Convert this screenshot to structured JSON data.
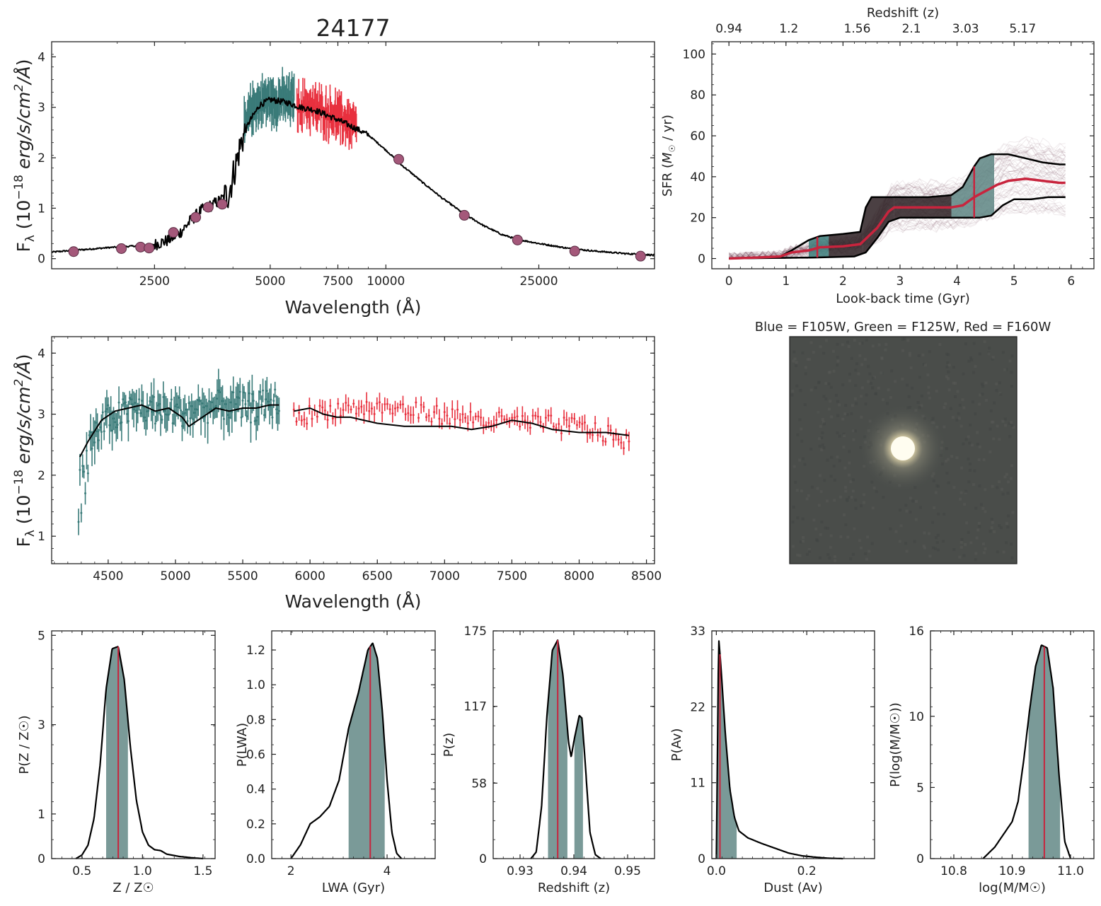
{
  "colors": {
    "grism_blue": "#3a7b79",
    "grism_red": "#e8303e",
    "model": "#000000",
    "photometry": "#a4587a",
    "sfr_median": "#c8243d",
    "posterior_fill": "#7a9a98",
    "posterior_median": "#c8243d"
  },
  "chart_data": [
    {
      "id": "sed_full",
      "type": "line",
      "title": "24177",
      "xlabel": "Wavelength (Å)",
      "ylabel": "F_λ (10^-18 erg/s/cm²/Å)",
      "xscale": "log",
      "xlim": [
        1350,
        50000
      ],
      "ylim": [
        -0.2,
        4.3
      ],
      "xticks": [
        2500,
        5000,
        7500,
        10000,
        25000
      ],
      "xtick_labels": [
        "2500",
        "5000",
        "7500",
        "10000",
        "25000"
      ],
      "yticks": [
        0,
        1,
        2,
        3,
        4
      ],
      "ytick_labels": [
        "0",
        "1",
        "2",
        "3",
        "4"
      ],
      "photometry": {
        "x": [
          1540,
          2050,
          2300,
          2420,
          2800,
          3200,
          3450,
          3750,
          10800,
          16000,
          22000,
          31000,
          46000
        ],
        "y": [
          0.14,
          0.2,
          0.23,
          0.21,
          0.52,
          0.82,
          1.02,
          1.08,
          1.97,
          0.86,
          0.37,
          0.15,
          0.05
        ]
      },
      "model": {
        "x": [
          1300,
          1500,
          1700,
          1900,
          2100,
          2300,
          2500,
          2700,
          2900,
          3100,
          3300,
          3500,
          3700,
          3900,
          4050,
          4200,
          4400,
          4700,
          5000,
          5500,
          6000,
          6500,
          7000,
          7500,
          8000,
          8500,
          9000,
          10000,
          11000,
          12500,
          14000,
          16000,
          18000,
          20000,
          22000,
          25000,
          30000,
          35000,
          42000,
          50000
        ],
        "y": [
          0.12,
          0.16,
          0.19,
          0.22,
          0.24,
          0.26,
          0.28,
          0.36,
          0.5,
          0.75,
          0.95,
          1.05,
          1.15,
          1.3,
          1.8,
          2.3,
          2.7,
          3.05,
          3.15,
          3.1,
          3.0,
          2.95,
          2.85,
          2.75,
          2.65,
          2.55,
          2.45,
          2.15,
          1.85,
          1.5,
          1.2,
          0.88,
          0.65,
          0.48,
          0.38,
          0.3,
          0.2,
          0.15,
          0.1,
          0.07
        ]
      },
      "grism_blue": {
        "x_range": [
          4280,
          5770
        ],
        "y_mean": [
          2.6,
          3.0,
          3.1,
          3.15,
          3.1,
          3.2,
          3.1,
          3.2
        ]
      },
      "grism_red": {
        "x_range": [
          5870,
          8380
        ],
        "y_mean": [
          3.0,
          3.05,
          2.95,
          2.9,
          2.85,
          2.75,
          2.7,
          2.6
        ]
      }
    },
    {
      "id": "sfh",
      "type": "line",
      "xlabel": "Look-back time (Gyr)",
      "ylabel": "SFR (M☉ / yr)",
      "top_xlabel": "Redshift (z)",
      "top_xtick_labels": [
        "0.94",
        "1.2",
        "1.56",
        "2.1",
        "3.03",
        "5.17"
      ],
      "xlim": [
        -0.3,
        6.4
      ],
      "ylim": [
        -5,
        106
      ],
      "xticks": [
        0,
        1,
        2,
        3,
        4,
        5,
        6
      ],
      "yticks": [
        0,
        20,
        40,
        60,
        80,
        100
      ],
      "median": {
        "x": [
          0,
          0.5,
          0.9,
          1.1,
          1.4,
          1.6,
          2.0,
          2.3,
          2.6,
          2.8,
          2.9,
          3.5,
          3.9,
          4.1,
          4.3,
          4.5,
          4.7,
          4.9,
          5.2,
          5.5,
          5.8,
          5.9
        ],
        "y": [
          0,
          0.5,
          1,
          3,
          4,
          5.5,
          6,
          7,
          15,
          23,
          25,
          25,
          25,
          26,
          30,
          33,
          36,
          38,
          39,
          38,
          37,
          37
        ]
      },
      "upper": {
        "x": [
          0,
          0.9,
          1.1,
          1.4,
          1.6,
          2.0,
          2.3,
          2.4,
          2.5,
          2.8,
          2.9,
          3.5,
          3.9,
          4.1,
          4.3,
          4.4,
          4.6,
          4.9,
          5.2,
          5.5,
          5.8,
          5.9
        ],
        "y": [
          0,
          1,
          4,
          9,
          11,
          12,
          13,
          25,
          30,
          30,
          30,
          30,
          31,
          35,
          45,
          49,
          51,
          51,
          49,
          47,
          46,
          46
        ]
      },
      "lower": {
        "x": [
          0,
          1.5,
          2.2,
          2.4,
          2.6,
          2.8,
          3.0,
          3.9,
          4.2,
          4.4,
          4.6,
          4.8,
          5.0,
          5.3,
          5.6,
          5.9
        ],
        "y": [
          0,
          0.5,
          1,
          3,
          10,
          18,
          20,
          20,
          20,
          20,
          21,
          26,
          29,
          29,
          30,
          30
        ]
      },
      "markers_x": [
        1.55,
        4.3
      ]
    },
    {
      "id": "rgb_image",
      "type": "image",
      "title": "Blue = F105W, Green = F125W, Red = F160W"
    },
    {
      "id": "sed_zoom",
      "type": "line",
      "xlabel": "Wavelength (Å)",
      "ylabel": "F_λ (10^-18 erg/s/cm²/Å)",
      "xlim": [
        4080,
        8560
      ],
      "ylim": [
        0.55,
        4.27
      ],
      "xticks": [
        4500,
        5000,
        5500,
        6000,
        6500,
        7000,
        7500,
        8000,
        8500
      ],
      "yticks": [
        1,
        2,
        3,
        4
      ],
      "model": {
        "x": [
          4290,
          4350,
          4450,
          4550,
          4650,
          4750,
          4850,
          4950,
          5050,
          5100,
          5200,
          5300,
          5400,
          5500,
          5600,
          5700,
          5770,
          5880,
          6000,
          6100,
          6200,
          6300,
          6500,
          6700,
          6900,
          7050,
          7200,
          7350,
          7500,
          7650,
          7800,
          8000,
          8200,
          8370
        ],
        "y": [
          2.3,
          2.55,
          2.9,
          3.05,
          3.1,
          3.15,
          3.05,
          3.1,
          2.95,
          2.8,
          2.95,
          3.1,
          3.05,
          3.1,
          3.1,
          3.15,
          3.15,
          3.05,
          3.1,
          3.0,
          2.95,
          2.95,
          2.85,
          2.8,
          2.8,
          2.8,
          2.75,
          2.8,
          2.9,
          2.85,
          2.75,
          2.7,
          2.7,
          2.65
        ]
      },
      "grism_blue": {
        "x_range": [
          4280,
          5770
        ],
        "trend_y": [
          2.3,
          2.9,
          3.1,
          3.05,
          3.05,
          3.15,
          3.1,
          3.2
        ]
      },
      "grism_red": {
        "x_range": [
          5880,
          8370
        ],
        "trend_y": [
          2.95,
          3.1,
          3.1,
          3.0,
          2.9,
          2.85,
          2.8,
          2.55
        ]
      }
    },
    {
      "id": "post_Z",
      "type": "area",
      "xlabel": "Z / Z☉",
      "ylabel": "P(Z / Z☉)",
      "xlim": [
        0.25,
        1.6
      ],
      "ylim": [
        0,
        5.1
      ],
      "xticks": [
        0.5,
        1.0,
        1.5
      ],
      "xtick_labels": [
        "0.5",
        "1.0",
        "1.5"
      ],
      "yticks": [
        0,
        1,
        3,
        5
      ],
      "ytick_labels": [
        "0",
        "1",
        "3",
        "5"
      ],
      "x": [
        0.45,
        0.5,
        0.55,
        0.6,
        0.65,
        0.7,
        0.75,
        0.8,
        0.85,
        0.9,
        0.95,
        1.0,
        1.05,
        1.1,
        1.15,
        1.2,
        1.3,
        1.4,
        1.5
      ],
      "y": [
        0,
        0.08,
        0.3,
        0.9,
        2.1,
        3.8,
        4.7,
        4.75,
        4.0,
        2.5,
        1.3,
        0.6,
        0.3,
        0.2,
        0.18,
        0.1,
        0.05,
        0.02,
        0
      ],
      "fill_range": [
        0.7,
        0.88
      ],
      "median": 0.8
    },
    {
      "id": "post_LWA",
      "type": "area",
      "xlabel": "LWA (Gyr)",
      "ylabel": "P(LWA)",
      "xlim": [
        1.6,
        5.0
      ],
      "ylim": [
        0,
        1.31
      ],
      "xticks": [
        2,
        4
      ],
      "xtick_labels": [
        "2",
        "4"
      ],
      "yticks": [
        0.0,
        0.2,
        0.4,
        0.6,
        0.8,
        1.0,
        1.2
      ],
      "ytick_labels": [
        "0.0",
        "0.2",
        "0.4",
        "0.6",
        "0.8",
        "1.0",
        "1.2"
      ],
      "x": [
        2.0,
        2.2,
        2.4,
        2.6,
        2.8,
        3.0,
        3.2,
        3.4,
        3.6,
        3.7,
        3.8,
        3.9,
        4.0,
        4.1,
        4.2,
        4.3
      ],
      "y": [
        0,
        0.08,
        0.2,
        0.24,
        0.3,
        0.45,
        0.75,
        0.95,
        1.2,
        1.24,
        1.15,
        0.85,
        0.45,
        0.15,
        0.03,
        0
      ],
      "fill_range": [
        3.2,
        3.95
      ],
      "median": 3.65
    },
    {
      "id": "post_z",
      "type": "area",
      "xlabel": "Redshift (z)",
      "ylabel": "P(z)",
      "xlim": [
        0.925,
        0.955
      ],
      "ylim": [
        0,
        175
      ],
      "xticks": [
        0.93,
        0.94,
        0.95
      ],
      "xtick_labels": [
        "0.93",
        "0.94",
        "0.95"
      ],
      "yticks": [
        0,
        58,
        117,
        175
      ],
      "ytick_labels": [
        "0",
        "58",
        "117",
        "175"
      ],
      "x": [
        0.932,
        0.933,
        0.934,
        0.935,
        0.936,
        0.937,
        0.938,
        0.939,
        0.9395,
        0.94,
        0.941,
        0.9415,
        0.942,
        0.943,
        0.944,
        0.945
      ],
      "y": [
        0,
        5,
        40,
        110,
        160,
        168,
        140,
        90,
        78,
        90,
        110,
        108,
        80,
        20,
        3,
        0
      ],
      "fill_ranges": [
        [
          0.9352,
          0.9388
        ],
        [
          0.9401,
          0.9417
        ]
      ],
      "median": 0.937
    },
    {
      "id": "post_Av",
      "type": "area",
      "xlabel": "Dust (Av)",
      "ylabel": "P(Av)",
      "xlim": [
        -0.01,
        0.35
      ],
      "ylim": [
        0,
        33
      ],
      "xticks": [
        0.0,
        0.2
      ],
      "xtick_labels": [
        "0.0",
        "0.2"
      ],
      "yticks": [
        0,
        11,
        22,
        33
      ],
      "ytick_labels": [
        "0",
        "11",
        "22",
        "33"
      ],
      "x": [
        0.0,
        0.005,
        0.01,
        0.02,
        0.03,
        0.04,
        0.05,
        0.07,
        0.1,
        0.13,
        0.16,
        0.19,
        0.22,
        0.25,
        0.28
      ],
      "y": [
        0,
        32,
        28,
        18,
        10,
        6,
        4,
        3,
        2.2,
        1.5,
        0.8,
        0.4,
        0.2,
        0.05,
        0
      ],
      "fill_range": [
        0.0,
        0.045
      ],
      "median": 0.008
    },
    {
      "id": "post_logM",
      "type": "area",
      "xlabel": "log(M/M☉)",
      "ylabel": "P(log(M/M☉))",
      "xlim": [
        10.76,
        11.04
      ],
      "ylim": [
        0,
        16
      ],
      "xticks": [
        10.8,
        10.9,
        11.0
      ],
      "xtick_labels": [
        "10.8",
        "10.9",
        "11.0"
      ],
      "yticks": [
        0,
        5,
        10,
        16
      ],
      "ytick_labels": [
        "0",
        "5",
        "10",
        "16"
      ],
      "x": [
        10.85,
        10.87,
        10.89,
        10.9,
        10.91,
        10.92,
        10.93,
        10.94,
        10.95,
        10.96,
        10.97,
        10.98,
        10.99,
        11.0
      ],
      "y": [
        0,
        0.8,
        2.0,
        2.6,
        4.0,
        7.0,
        10.5,
        13.5,
        15.0,
        14.8,
        12.0,
        6.0,
        1.2,
        0
      ],
      "fill_range": [
        10.928,
        10.982
      ],
      "median": 10.955
    }
  ]
}
